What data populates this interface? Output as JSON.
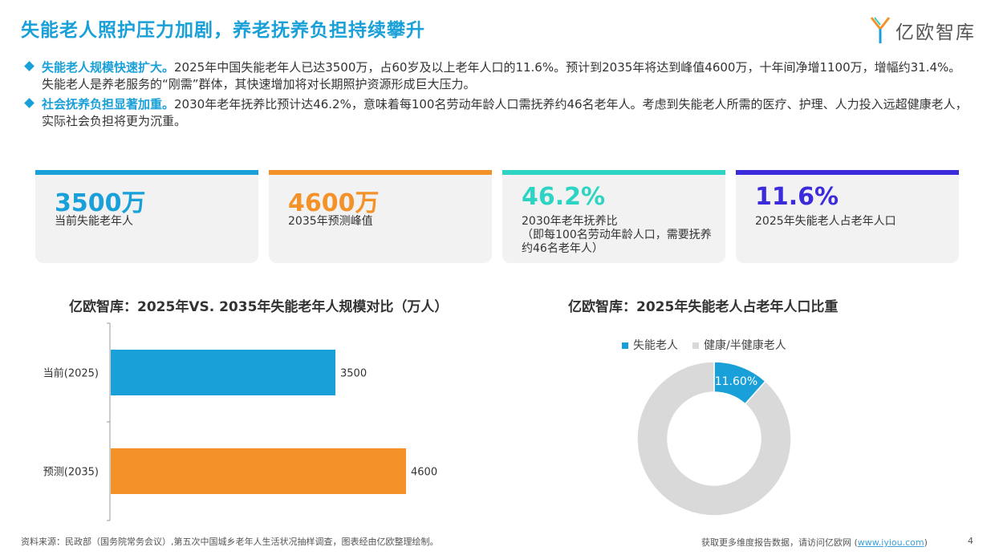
{
  "page": {
    "title": "失能老人照护压力加剧，养老抚养负担持续攀升",
    "logo_text": "亿欧智库",
    "page_number": "4"
  },
  "bullets": [
    {
      "highlight": "失能老人规模快速扩大。",
      "text": "2025年中国失能老年人已达3500万，占60岁及以上老年人口的11.6%。预计到2035年将达到峰值4600万，十年间净增1100万，增幅约31.4%。失能老人是养老服务的“刚需”群体，其快速增加将对长期照护资源形成巨大压力。"
    },
    {
      "highlight": "社会抚养负担显著加重。",
      "text": "2030年老年抚养比预计达46.2%，意味着每100名劳动年龄人口需抚养约46名老年人。考虑到失能老人所需的医疗、护理、人力投入远超健康老人，实际社会负担将更为沉重。"
    }
  ],
  "cards": [
    {
      "value": "3500万",
      "label": "当前失能老年人",
      "color": "#1aa0d8"
    },
    {
      "value": "4600万",
      "label": "2035年预测峰值",
      "color": "#f39229"
    },
    {
      "value": "46.2%",
      "label": "2030年老年抚养比\n（即每100名劳动年龄人口，需要抚养约46名老年人）",
      "color": "#2dd4c3"
    },
    {
      "value": "11.6%",
      "label": "2025年失能老人占老年人口",
      "color": "#3b2bdb"
    }
  ],
  "chart_data": [
    {
      "type": "bar",
      "orientation": "horizontal",
      "title": "亿欧智库：2025年VS. 2035年失能老年人规模对比（万人）",
      "categories": [
        "当前(2025)",
        "预测(2035)"
      ],
      "values": [
        3500,
        4600
      ],
      "value_labels": [
        "3500",
        "4600"
      ],
      "colors": [
        "#1aa0d8",
        "#f39229"
      ],
      "xlim": [
        0,
        8000
      ]
    },
    {
      "type": "pie",
      "donut": true,
      "title": "亿欧智库：2025年失能老人占老年人口比重",
      "labels": [
        "失能老人",
        "健康/半健康老人"
      ],
      "values": [
        11.6,
        88.4
      ],
      "value_labels": [
        "11.60%",
        ""
      ],
      "colors": [
        "#1aa0d8",
        "#d9d9d9"
      ],
      "legend": "top"
    }
  ],
  "footer": {
    "source": "资料来源：民政部（国务院常务会议）,第五次中国城乡老年人生活状况抽样调查，图表经由亿欧整理绘制。",
    "more_prefix": "获取更多维度报告数据，请访问亿欧网 (",
    "more_link": "www.iyiou.com",
    "more_suffix": ")"
  }
}
